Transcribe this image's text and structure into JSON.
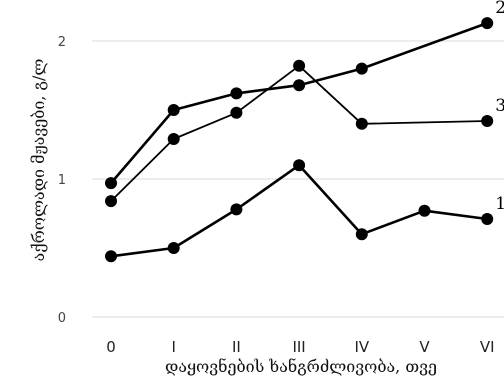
{
  "chart_data": {
    "type": "line",
    "categories": [
      "0",
      "I",
      "II",
      "III",
      "IV",
      "V",
      "VI"
    ],
    "xlabel": "დაყოვნების ხანგრძლივობა, თვე",
    "ylabel": "აქროლადი მჟავები, გ/ლ",
    "ylim": [
      0,
      2.3
    ],
    "yticks": [
      "0",
      "1",
      "2"
    ],
    "grid": true,
    "series": [
      {
        "name": "1",
        "values": [
          0.44,
          0.5,
          0.78,
          1.1,
          0.6,
          0.77,
          0.71
        ]
      },
      {
        "name": "2",
        "values": [
          0.97,
          1.5,
          1.62,
          1.68,
          1.8,
          null,
          2.13
        ]
      },
      {
        "name": "3",
        "values": [
          0.84,
          1.29,
          1.48,
          1.82,
          1.4,
          null,
          1.42
        ]
      }
    ]
  }
}
